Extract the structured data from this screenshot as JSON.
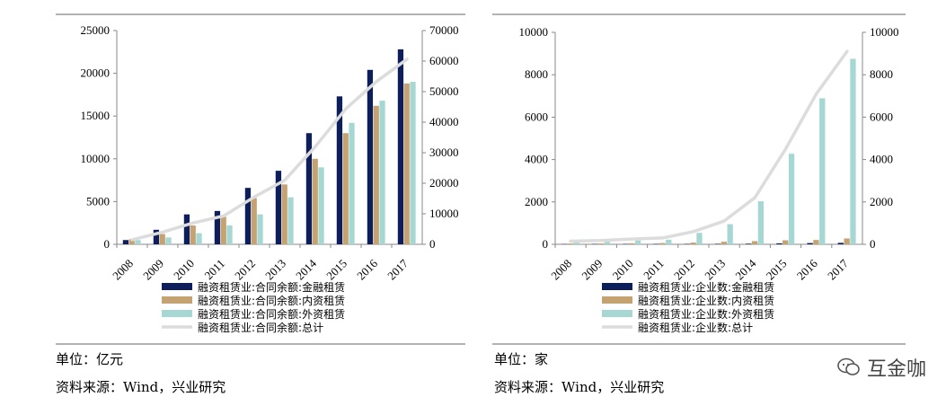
{
  "chart_data": [
    {
      "type": "bar",
      "categories": [
        "2008",
        "2009",
        "2010",
        "2011",
        "2012",
        "2013",
        "2014",
        "2015",
        "2016",
        "2017"
      ],
      "ylim": [
        0,
        25000
      ],
      "y2lim": [
        0,
        70000
      ],
      "y_ticks": [
        "0",
        "5000",
        "10000",
        "15000",
        "20000",
        "25000"
      ],
      "y2_ticks": [
        "0",
        "10000",
        "20000",
        "30000",
        "40000",
        "50000",
        "60000",
        "70000"
      ],
      "series": [
        {
          "name": "融资租赁业:合同余额:金融租赁",
          "kind": "bar",
          "color": "#0c1f5c",
          "values": [
            500,
            1700,
            3500,
            3900,
            6600,
            8600,
            13000,
            17300,
            20400,
            22800
          ]
        },
        {
          "name": "融资租赁业:合同余额:内资租赁",
          "kind": "bar",
          "color": "#c4a271",
          "values": [
            600,
            1200,
            2200,
            3200,
            5400,
            7000,
            10000,
            13000,
            16200,
            18800
          ]
        },
        {
          "name": "融资租赁业:合同余额:外资租赁",
          "kind": "bar",
          "color": "#a6d7d3",
          "values": [
            500,
            800,
            1300,
            2200,
            3500,
            5500,
            9000,
            14200,
            16800,
            19000
          ]
        },
        {
          "name": "融资租赁业:合同余额:总计",
          "kind": "line",
          "axis": "right",
          "color": "#dcdcdc",
          "values": [
            1500,
            4000,
            7000,
            9300,
            15500,
            21000,
            32000,
            44400,
            53300,
            60600
          ]
        }
      ],
      "footer": {
        "unit": "单位：亿元",
        "source": "资料来源：Wind，兴业研究"
      }
    },
    {
      "type": "bar",
      "categories": [
        "2008",
        "2009",
        "2010",
        "2011",
        "2012",
        "2013",
        "2014",
        "2015",
        "2016",
        "2017"
      ],
      "ylim": [
        0,
        10000
      ],
      "y2lim": [
        0,
        10000
      ],
      "y_ticks": [
        "0",
        "2000",
        "4000",
        "6000",
        "8000",
        "10000"
      ],
      "y2_ticks": [
        "0",
        "2000",
        "4000",
        "6000",
        "8000",
        "10000"
      ],
      "series": [
        {
          "name": "融资租赁业:企业数:金融租赁",
          "kind": "bar",
          "color": "#0c1f5c",
          "values": [
            12,
            17,
            17,
            20,
            20,
            23,
            30,
            47,
            59,
            69
          ]
        },
        {
          "name": "融资租赁业:企业数:内资租赁",
          "kind": "bar",
          "color": "#c4a271",
          "values": [
            37,
            40,
            50,
            60,
            80,
            120,
            150,
            190,
            205,
            276
          ]
        },
        {
          "name": "融资租赁业:企业数:外资租赁",
          "kind": "bar",
          "color": "#a6d7d3",
          "values": [
            100,
            120,
            180,
            220,
            540,
            950,
            2030,
            4270,
            6890,
            8750
          ]
        },
        {
          "name": "融资租赁业:企业数:总计",
          "kind": "line",
          "axis": "right",
          "color": "#dcdcdc",
          "values": [
            150,
            180,
            250,
            300,
            600,
            1100,
            2200,
            4500,
            7100,
            9100
          ]
        }
      ],
      "footer": {
        "unit": "单位：家",
        "source": "资料来源：Wind，兴业研究"
      }
    }
  ],
  "watermark": {
    "text": "互金咖",
    "icon": "wechat-icon"
  }
}
